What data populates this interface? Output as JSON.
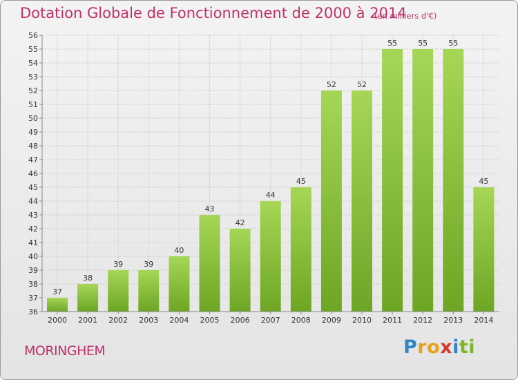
{
  "title": "Dotation Globale de Fonctionnement de 2000 à 2014",
  "subtitle": "(en milliers d'€)",
  "commune": "MORINGHEM",
  "logo": {
    "letters": [
      "P",
      "r",
      "o",
      "x",
      "i",
      "t",
      "i"
    ]
  },
  "colors": {
    "title": "#c0306a",
    "bar_light": "#a6d656",
    "bar_dark": "#6da624"
  },
  "chart_data": {
    "type": "bar",
    "title": "Dotation Globale de Fonctionnement de 2000 à 2014",
    "subtitle": "(en milliers d'€)",
    "categories": [
      "2000",
      "2001",
      "2002",
      "2003",
      "2004",
      "2005",
      "2006",
      "2007",
      "2008",
      "2009",
      "2010",
      "2011",
      "2012",
      "2013",
      "2014"
    ],
    "values": [
      37,
      38,
      39,
      39,
      40,
      43,
      42,
      44,
      45,
      52,
      52,
      55,
      55,
      55,
      45
    ],
    "ylim": [
      36,
      56
    ],
    "yticks": [
      36,
      37,
      38,
      39,
      40,
      41,
      42,
      43,
      44,
      45,
      46,
      47,
      48,
      49,
      50,
      51,
      52,
      53,
      54,
      55,
      56
    ],
    "grid": true
  }
}
